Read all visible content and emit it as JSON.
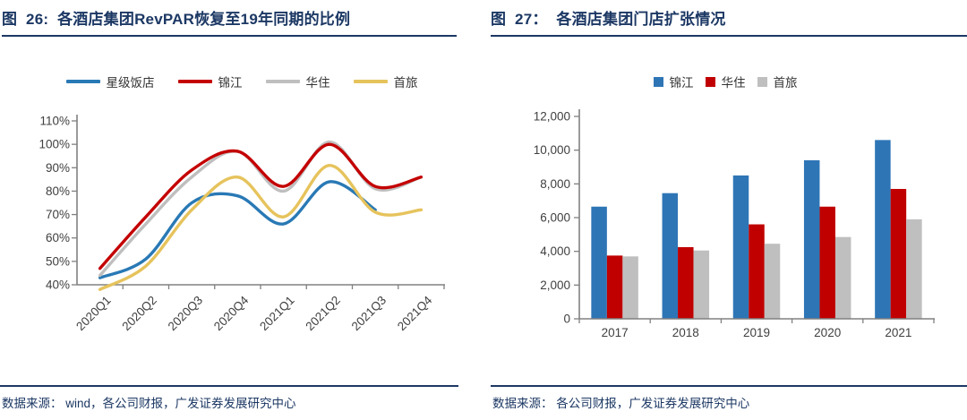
{
  "colors": {
    "title_navy": "#1C3864",
    "axis_gray": "#808080",
    "label_dark": "#404040",
    "line_blue": "#2979B5",
    "line_red": "#C40000",
    "line_gray": "#BFBFBF",
    "line_yellow": "#E6C35C",
    "bar_blue": "#2E75B6",
    "bar_red": "#C00000",
    "bar_gray": "#BFBFBF"
  },
  "figures": [
    {
      "title": "图  26:  各酒店集团RevPAR恢复至19年同期的比例",
      "source": "数据来源： wind，各公司财报，广发证券发展研究中心"
    },
    {
      "title": "图  27：  各酒店集团门店扩张情况",
      "source": "数据来源： 各公司财报，广发证券发展研究中心"
    }
  ],
  "chart_data": [
    {
      "type": "line",
      "title": "各酒店集团RevPAR恢复至19年同期的比例",
      "categories": [
        "2020Q1",
        "2020Q2",
        "2020Q3",
        "2020Q4",
        "2021Q1",
        "2021Q2",
        "2021Q3",
        "2021Q4"
      ],
      "series": [
        {
          "name": "星级饭店",
          "color": "#2979B5",
          "values": [
            43,
            51,
            75,
            78,
            66,
            84,
            72,
            null
          ]
        },
        {
          "name": "锦江",
          "color": "#C40000",
          "values": [
            47,
            69,
            89,
            97,
            82,
            100,
            82,
            86
          ]
        },
        {
          "name": "华住",
          "color": "#BFBFBF",
          "values": [
            44,
            66,
            86,
            97,
            80,
            101,
            81,
            86
          ]
        },
        {
          "name": "首旅",
          "color": "#E6C35C",
          "values": [
            38,
            48,
            72,
            86,
            69,
            91,
            71,
            72
          ]
        }
      ],
      "draw_order": [
        0,
        2,
        1,
        3
      ],
      "ylim": [
        40,
        110
      ],
      "ytick_step": 10,
      "yformat": "percent",
      "xlabel": "",
      "ylabel": "",
      "grid": false,
      "legend_position": "top",
      "x_labels_rotated": true
    },
    {
      "type": "bar",
      "title": "各酒店集团门店扩张情况",
      "categories": [
        "2017",
        "2018",
        "2019",
        "2020",
        "2021"
      ],
      "series": [
        {
          "name": "锦江",
          "color": "#2E75B6",
          "values": [
            6650,
            7450,
            8500,
            9400,
            10600
          ]
        },
        {
          "name": "华住",
          "color": "#C00000",
          "values": [
            3750,
            4250,
            5600,
            6650,
            7700
          ]
        },
        {
          "name": "首旅",
          "color": "#BFBFBF",
          "values": [
            3700,
            4050,
            4450,
            4850,
            5900
          ]
        }
      ],
      "draw_order": [
        0,
        1,
        2
      ],
      "ylim": [
        0,
        12000
      ],
      "ytick_step": 2000,
      "yformat": "thousands",
      "xlabel": "",
      "ylabel": "",
      "grid": false,
      "legend_position": "top"
    }
  ]
}
